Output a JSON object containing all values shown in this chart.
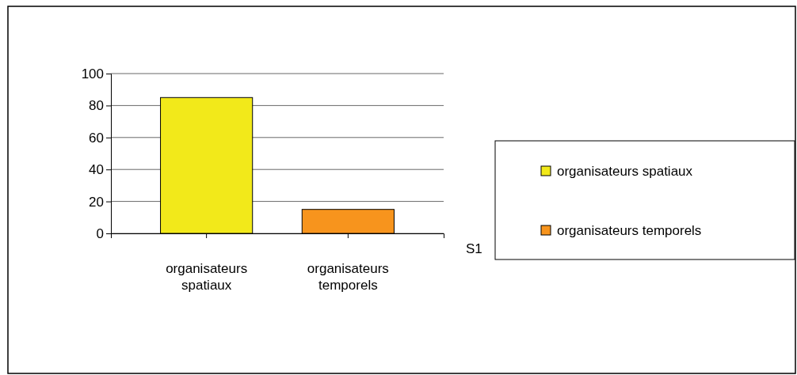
{
  "chart_data": {
    "type": "bar",
    "stacked": true,
    "categories": [
      "organisateurs spatiaux",
      "organisateurs temporels"
    ],
    "series": [
      {
        "name": "organisateurs spatiaux",
        "color": "#f2e91a",
        "values": [
          85,
          null
        ]
      },
      {
        "name": "organisateurs temporels",
        "color": "#f7941d",
        "values": [
          null,
          15
        ]
      }
    ],
    "ylim": [
      0,
      100
    ],
    "yticks": [
      0,
      20,
      40,
      60,
      80,
      100
    ],
    "grid": "y",
    "legend": "right",
    "annotations": [
      "S1"
    ]
  }
}
